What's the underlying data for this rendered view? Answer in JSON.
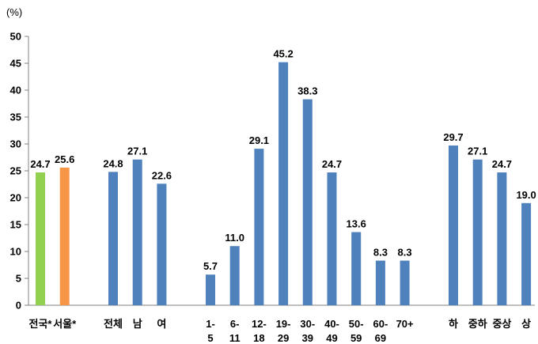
{
  "chart_data": {
    "type": "bar",
    "ylabel": "(%)",
    "ylim": [
      0,
      50
    ],
    "yticks": [
      "0",
      "5",
      "10",
      "15",
      "20",
      "25",
      "30",
      "35",
      "40",
      "45",
      "50"
    ],
    "grid": false,
    "legend": "none",
    "colors": {
      "default": "#4F81BD",
      "national": "#92D050",
      "seoul": "#F79646"
    },
    "groups": [
      {
        "name": "region",
        "bars": [
          {
            "label": "전국*",
            "value": 24.7,
            "value_label": "24.7",
            "color_key": "national"
          },
          {
            "label": "서울*",
            "value": 25.6,
            "value_label": "25.6",
            "color_key": "seoul"
          }
        ]
      },
      {
        "name": "sex",
        "bars": [
          {
            "label": "전체",
            "value": 24.8,
            "value_label": "24.8",
            "color_key": "default"
          },
          {
            "label": "남",
            "value": 27.1,
            "value_label": "27.1",
            "color_key": "default"
          },
          {
            "label": "여",
            "value": 22.6,
            "value_label": "22.6",
            "color_key": "default"
          }
        ]
      },
      {
        "name": "age",
        "bars": [
          {
            "label": "1-\n5",
            "value": 5.7,
            "value_label": "5.7",
            "color_key": "default"
          },
          {
            "label": "6-\n11",
            "value": 11.0,
            "value_label": "11.0",
            "color_key": "default"
          },
          {
            "label": "12-\n18",
            "value": 29.1,
            "value_label": "29.1",
            "color_key": "default"
          },
          {
            "label": "19-\n29",
            "value": 45.2,
            "value_label": "45.2",
            "color_key": "default"
          },
          {
            "label": "30-\n39",
            "value": 38.3,
            "value_label": "38.3",
            "color_key": "default"
          },
          {
            "label": "40-\n49",
            "value": 24.7,
            "value_label": "24.7",
            "color_key": "default"
          },
          {
            "label": "50-\n59",
            "value": 13.6,
            "value_label": "13.6",
            "color_key": "default"
          },
          {
            "label": "60-\n69",
            "value": 8.3,
            "value_label": "8.3",
            "color_key": "default"
          },
          {
            "label": "70+",
            "value": 8.3,
            "value_label": "8.3",
            "color_key": "default"
          }
        ]
      },
      {
        "name": "income",
        "bars": [
          {
            "label": "하",
            "value": 29.7,
            "value_label": "29.7",
            "color_key": "default"
          },
          {
            "label": "중하",
            "value": 27.1,
            "value_label": "27.1",
            "color_key": "default"
          },
          {
            "label": "중상",
            "value": 24.7,
            "value_label": "24.7",
            "color_key": "default"
          },
          {
            "label": "상",
            "value": 19.0,
            "value_label": "19.0",
            "color_key": "default"
          }
        ]
      }
    ]
  }
}
